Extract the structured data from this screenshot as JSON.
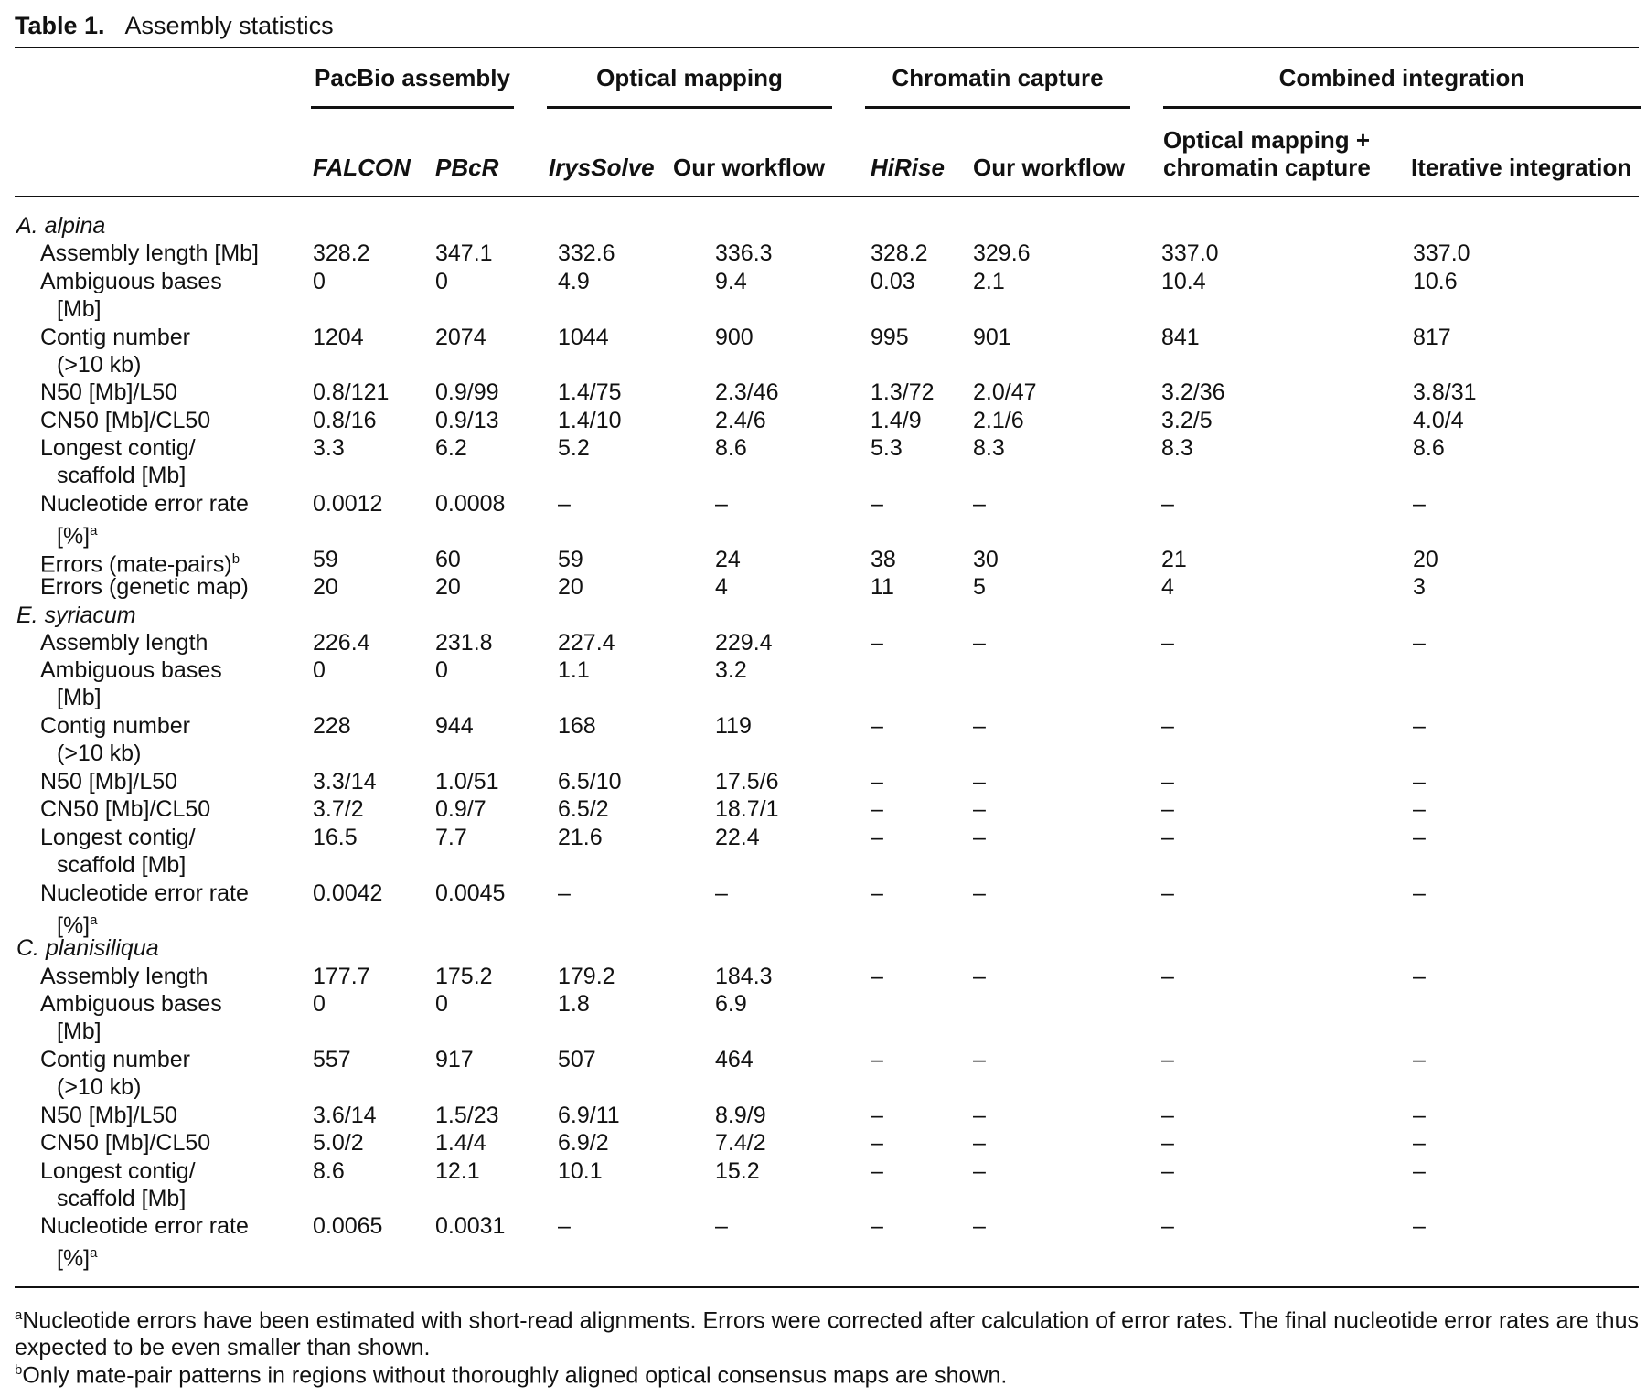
{
  "title": {
    "number": "Table 1.",
    "caption": "Assembly statistics"
  },
  "groups": [
    {
      "name": "PacBio assembly",
      "cols": [
        0,
        1
      ]
    },
    {
      "name": "Optical mapping",
      "cols": [
        2,
        3
      ]
    },
    {
      "name": "Chromatin capture",
      "cols": [
        4,
        5
      ]
    },
    {
      "name": "Combined integration",
      "cols": [
        6,
        7
      ]
    }
  ],
  "columns": [
    {
      "label": "FALCON",
      "italic": true
    },
    {
      "label": "PBcR",
      "italic": true
    },
    {
      "label": "IrysSolve",
      "italic": true
    },
    {
      "label": "Our workflow",
      "italic": false
    },
    {
      "label": "HiRise",
      "italic": true
    },
    {
      "label": "Our workflow",
      "italic": false
    },
    {
      "label": "Optical mapping +",
      "label2": "chromatin capture",
      "italic": false
    },
    {
      "label": "Iterative integration",
      "italic": false
    }
  ],
  "sections": [
    {
      "species": "A. alpina",
      "rows": [
        {
          "metric": "Assembly length [Mb]",
          "values": [
            "328.2",
            "347.1",
            "332.6",
            "336.3",
            "328.2",
            "329.6",
            "337.0",
            "337.0"
          ]
        },
        {
          "metric": "Ambiguous bases",
          "metric2": "[Mb]",
          "values": [
            "0",
            "0",
            "4.9",
            "9.4",
            "0.03",
            "2.1",
            "10.4",
            "10.6"
          ]
        },
        {
          "metric": "Contig number",
          "metric2": "(>10 kb)",
          "values": [
            "1204",
            "2074",
            "1044",
            "900",
            "995",
            "901",
            "841",
            "817"
          ]
        },
        {
          "metric": "N50 [Mb]/L50",
          "values": [
            "0.8/121",
            "0.9/99",
            "1.4/75",
            "2.3/46",
            "1.3/72",
            "2.0/47",
            "3.2/36",
            "3.8/31"
          ]
        },
        {
          "metric": "CN50 [Mb]/CL50",
          "values": [
            "0.8/16",
            "0.9/13",
            "1.4/10",
            "2.4/6",
            "1.4/9",
            "2.1/6",
            "3.2/5",
            "4.0/4"
          ]
        },
        {
          "metric": "Longest contig/",
          "metric2": "scaffold [Mb]",
          "values": [
            "3.3",
            "6.2",
            "5.2",
            "8.6",
            "5.3",
            "8.3",
            "8.3",
            "8.6"
          ]
        },
        {
          "metric": "Nucleotide error rate",
          "metric2": "[%]",
          "sup": "a",
          "values": [
            "0.0012",
            "0.0008",
            "–",
            "–",
            "–",
            "–",
            "–",
            "–"
          ]
        },
        {
          "metric": "Errors (mate-pairs)",
          "sup": "b",
          "values": [
            "59",
            "60",
            "59",
            "24",
            "38",
            "30",
            "21",
            "20"
          ]
        },
        {
          "metric": "Errors (genetic map)",
          "values": [
            "20",
            "20",
            "20",
            "4",
            "11",
            "5",
            "4",
            "3"
          ]
        }
      ]
    },
    {
      "species": "E. syriacum",
      "rows": [
        {
          "metric": "Assembly length",
          "values": [
            "226.4",
            "231.8",
            "227.4",
            "229.4",
            "–",
            "–",
            "–",
            "–"
          ]
        },
        {
          "metric": "Ambiguous bases",
          "metric2": "[Mb]",
          "values": [
            "0",
            "0",
            "1.1",
            "3.2",
            "",
            "",
            "",
            ""
          ]
        },
        {
          "metric": "Contig number",
          "metric2": "(>10 kb)",
          "values": [
            "228",
            "944",
            "168",
            "119",
            "–",
            "–",
            "–",
            "–"
          ]
        },
        {
          "metric": "N50 [Mb]/L50",
          "values": [
            "3.3/14",
            "1.0/51",
            "6.5/10",
            "17.5/6",
            "–",
            "–",
            "–",
            "–"
          ]
        },
        {
          "metric": "CN50 [Mb]/CL50",
          "values": [
            "3.7/2",
            "0.9/7",
            "6.5/2",
            "18.7/1",
            "–",
            "–",
            "–",
            "–"
          ]
        },
        {
          "metric": "Longest contig/",
          "metric2": "scaffold [Mb]",
          "values": [
            "16.5",
            "7.7",
            "21.6",
            "22.4",
            "–",
            "–",
            "–",
            "–"
          ]
        },
        {
          "metric": "Nucleotide error rate",
          "metric2": "[%]",
          "sup": "a",
          "values": [
            "0.0042",
            "0.0045",
            "–",
            "–",
            "–",
            "–",
            "–",
            "–"
          ]
        }
      ]
    },
    {
      "species": "C. planisiliqua",
      "rows": [
        {
          "metric": "Assembly length",
          "values": [
            "177.7",
            "175.2",
            "179.2",
            "184.3",
            "–",
            "–",
            "–",
            "–"
          ]
        },
        {
          "metric": "Ambiguous bases",
          "metric2": "[Mb]",
          "values": [
            "0",
            "0",
            "1.8",
            "6.9",
            "",
            "",
            "",
            ""
          ]
        },
        {
          "metric": "Contig number",
          "metric2": "(>10 kb)",
          "values": [
            "557",
            "917",
            "507",
            "464",
            "–",
            "–",
            "–",
            "–"
          ]
        },
        {
          "metric": "N50 [Mb]/L50",
          "values": [
            "3.6/14",
            "1.5/23",
            "6.9/11",
            "8.9/9",
            "–",
            "–",
            "–",
            "–"
          ]
        },
        {
          "metric": "CN50 [Mb]/CL50",
          "values": [
            "5.0/2",
            "1.4/4",
            "6.9/2",
            "7.4/2",
            "–",
            "–",
            "–",
            "–"
          ]
        },
        {
          "metric": "Longest contig/",
          "metric2": "scaffold [Mb]",
          "values": [
            "8.6",
            "12.1",
            "10.1",
            "15.2",
            "–",
            "–",
            "–",
            "–"
          ]
        },
        {
          "metric": "Nucleotide error rate",
          "metric2": "[%]",
          "sup": "a",
          "values": [
            "0.0065",
            "0.0031",
            "–",
            "–",
            "–",
            "–",
            "–",
            "–"
          ]
        }
      ]
    }
  ],
  "footnotes": [
    {
      "mark": "a",
      "text": "Nucleotide errors have been estimated with short-read alignments. Errors were corrected after calculation of error rates. The final nucleotide error rates are thus expected to be even smaller than shown."
    },
    {
      "mark": "b",
      "text": "Only mate-pair patterns in regions without thoroughly aligned optical consensus maps are shown."
    }
  ]
}
